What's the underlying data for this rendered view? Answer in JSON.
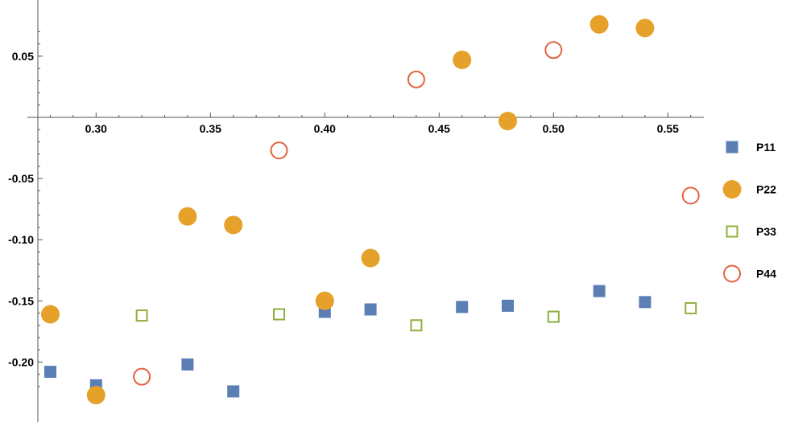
{
  "chart_data": {
    "type": "scatter",
    "title": "",
    "xlabel": "",
    "ylabel": "",
    "xlim": [
      0.28,
      0.56
    ],
    "ylim": [
      -0.225,
      0.075
    ],
    "x_ticks": [
      0.3,
      0.35,
      0.4,
      0.45,
      0.5,
      0.55
    ],
    "x_tick_labels": [
      "0.30",
      "0.35",
      "0.40",
      "0.45",
      "0.50",
      "0.55"
    ],
    "y_ticks": [
      0.05,
      -0.05,
      -0.1,
      -0.15,
      -0.2
    ],
    "y_tick_labels": [
      "0.05",
      "-0.05",
      "-0.10",
      "-0.15",
      "-0.20"
    ],
    "grid": false,
    "legend_position": "right",
    "series": [
      {
        "name": "P11",
        "marker": "filled-square",
        "color": "#5b7fb5",
        "points": [
          [
            0.28,
            -0.208
          ],
          [
            0.3,
            -0.219
          ],
          [
            0.34,
            -0.202
          ],
          [
            0.36,
            -0.224
          ],
          [
            0.4,
            -0.159
          ],
          [
            0.42,
            -0.157
          ],
          [
            0.46,
            -0.155
          ],
          [
            0.48,
            -0.154
          ],
          [
            0.52,
            -0.142
          ],
          [
            0.54,
            -0.151
          ]
        ]
      },
      {
        "name": "P22",
        "marker": "filled-circle",
        "color": "#e6a12b",
        "points": [
          [
            0.28,
            -0.161
          ],
          [
            0.3,
            -0.227
          ],
          [
            0.34,
            -0.081
          ],
          [
            0.36,
            -0.088
          ],
          [
            0.4,
            -0.15
          ],
          [
            0.42,
            -0.115
          ],
          [
            0.46,
            0.047
          ],
          [
            0.48,
            -0.003
          ],
          [
            0.52,
            0.076
          ],
          [
            0.54,
            0.073
          ]
        ]
      },
      {
        "name": "P33",
        "marker": "open-square",
        "color": "#8fb03e",
        "points": [
          [
            0.32,
            -0.162
          ],
          [
            0.38,
            -0.161
          ],
          [
            0.44,
            -0.17
          ],
          [
            0.5,
            -0.163
          ],
          [
            0.56,
            -0.156
          ]
        ]
      },
      {
        "name": "P44",
        "marker": "open-circle",
        "color": "#e2633f",
        "points": [
          [
            0.32,
            -0.212
          ],
          [
            0.38,
            -0.027
          ],
          [
            0.44,
            0.031
          ],
          [
            0.5,
            0.055
          ],
          [
            0.56,
            -0.064
          ]
        ]
      }
    ]
  }
}
